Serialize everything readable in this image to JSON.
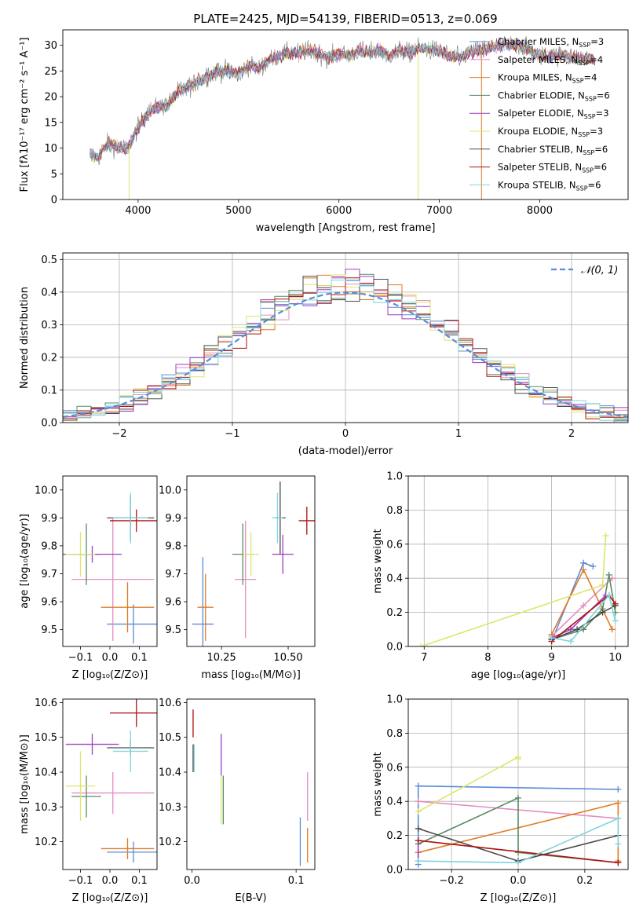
{
  "chart_data": [
    {
      "type": "line",
      "title": "PLATE=2425, MJD=54139, FIBERID=0513, z=0.069",
      "xlabel": "wavelength [Angstrom, rest frame]",
      "ylabel": "Flux [fλ10⁻¹⁷ erg cm⁻² s⁻¹ A⁻¹]",
      "xlim": [
        3250,
        8880
      ],
      "ylim": [
        0,
        33
      ],
      "xticks": [
        4000,
        5000,
        6000,
        7000,
        8000
      ],
      "yticks": [
        0,
        5,
        10,
        15,
        20,
        25,
        30
      ],
      "grid": false,
      "legend_position": "right",
      "legend": [
        {
          "name": "Chabrier MILES, N",
          "sub": "SSP",
          "tail": "=3",
          "color": "#5b8bd9"
        },
        {
          "name": "Salpeter MILES, N",
          "sub": "SSP",
          "tail": "=4",
          "color": "#e68dbf"
        },
        {
          "name": "Kroupa MILES, N",
          "sub": "SSP",
          "tail": "=4",
          "color": "#e07b25"
        },
        {
          "name": "Chabrier ELODIE, N",
          "sub": "SSP",
          "tail": "=6",
          "color": "#5a8a63"
        },
        {
          "name": "Salpeter ELODIE, N",
          "sub": "SSP",
          "tail": "=3",
          "color": "#9b3fc0"
        },
        {
          "name": "Kroupa ELODIE, N",
          "sub": "SSP",
          "tail": "=3",
          "color": "#dde56a"
        },
        {
          "name": "Chabrier STELIB, N",
          "sub": "SSP",
          "tail": "=6",
          "color": "#4a4a4a"
        },
        {
          "name": "Salpeter STELIB, N",
          "sub": "SSP",
          "tail": "=6",
          "color": "#b01010"
        },
        {
          "name": "Kroupa STELIB, N",
          "sub": "SSP",
          "tail": "=6",
          "color": "#7fd4dd"
        }
      ],
      "continuum": [
        [
          3520,
          9
        ],
        [
          3600,
          8
        ],
        [
          3700,
          11
        ],
        [
          3800,
          10
        ],
        [
          3900,
          10
        ],
        [
          4000,
          14
        ],
        [
          4100,
          17
        ],
        [
          4200,
          18
        ],
        [
          4300,
          18.5
        ],
        [
          4400,
          21
        ],
        [
          4500,
          22
        ],
        [
          4600,
          23
        ],
        [
          4700,
          24
        ],
        [
          4800,
          25
        ],
        [
          4900,
          25
        ],
        [
          5000,
          24.5
        ],
        [
          5100,
          26
        ],
        [
          5200,
          25.5
        ],
        [
          5300,
          27
        ],
        [
          5400,
          28
        ],
        [
          5500,
          28.5
        ],
        [
          5600,
          28.5
        ],
        [
          5700,
          29
        ],
        [
          5800,
          28.5
        ],
        [
          5900,
          27.5
        ],
        [
          6000,
          28.5
        ],
        [
          6100,
          28
        ],
        [
          6200,
          29
        ],
        [
          6300,
          28.5
        ],
        [
          6400,
          29
        ],
        [
          6500,
          28
        ],
        [
          6600,
          29
        ],
        [
          6700,
          28.5
        ],
        [
          6800,
          29.5
        ],
        [
          6900,
          29
        ],
        [
          7000,
          29
        ],
        [
          7100,
          28
        ],
        [
          7200,
          27.5
        ],
        [
          7300,
          28.5
        ],
        [
          7400,
          29
        ],
        [
          7500,
          29.5
        ],
        [
          7600,
          30
        ],
        [
          7800,
          30
        ],
        [
          8000,
          28
        ],
        [
          8200,
          28
        ],
        [
          8400,
          27.5
        ],
        [
          8600,
          27
        ]
      ],
      "data_end": 8550,
      "spikes": [
        {
          "x": 3910,
          "y": 0,
          "color": "#dde56a"
        },
        {
          "x": 6790,
          "y": 0,
          "color": "#dde56a"
        },
        {
          "x": 7420,
          "y": 0,
          "color": "#e07b25"
        }
      ]
    },
    {
      "type": "histogram",
      "xlabel": "(data-model)/error",
      "ylabel": "Normed distribution",
      "xlim": [
        -2.5,
        2.5
      ],
      "ylim": [
        0,
        0.52
      ],
      "xticks": [
        -2,
        -1,
        0,
        1,
        2
      ],
      "yticks": [
        0,
        0.1,
        0.2,
        0.3,
        0.4,
        0.5
      ],
      "grid": true,
      "bins": 40,
      "reference": {
        "label": "𝒩(0, 1)",
        "color": "#5b8bd9"
      }
    },
    {
      "type": "errorbar",
      "xlabel": "Z [log₁₀(Z/Z⊙)]",
      "ylabel": "age  [log₁₀(age/yr)]",
      "xlim": [
        -0.16,
        0.16
      ],
      "ylim": [
        9.44,
        10.05
      ],
      "xticks": [
        -0.1,
        0.0,
        0.1
      ],
      "yticks": [
        9.5,
        9.6,
        9.7,
        9.8,
        9.9,
        10.0
      ],
      "points": [
        {
          "x": 0.08,
          "y": 9.52,
          "xerr": 0.09,
          "yerr": 0.07,
          "color": "#5b8bd9"
        },
        {
          "x": 0.01,
          "y": 9.68,
          "xerr": 0.14,
          "yerr": 0.22,
          "color": "#e68dbf"
        },
        {
          "x": 0.06,
          "y": 9.58,
          "xerr": 0.09,
          "yerr": 0.09,
          "color": "#e07b25"
        },
        {
          "x": -0.08,
          "y": 9.77,
          "xerr": 0.05,
          "yerr": 0.11,
          "color": "#5a8a63"
        },
        {
          "x": -0.06,
          "y": 9.77,
          "xerr": 0.1,
          "yerr": 0.03,
          "color": "#9b3fc0"
        },
        {
          "x": -0.1,
          "y": 9.77,
          "xerr": 0.05,
          "yerr": 0.08,
          "color": "#dde56a"
        },
        {
          "x": 0.07,
          "y": 9.9,
          "xerr": 0.08,
          "yerr": 0.08,
          "color": "#4a4a4a"
        },
        {
          "x": 0.09,
          "y": 9.89,
          "xerr": 0.09,
          "yerr": 0.04,
          "color": "#b01010"
        },
        {
          "x": 0.07,
          "y": 9.9,
          "xerr": 0.06,
          "yerr": 0.09,
          "color": "#7fd4dd"
        }
      ]
    },
    {
      "type": "errorbar",
      "xlabel": "mass [log₁₀(M/M⊙)]",
      "xlim": [
        10.12,
        10.6
      ],
      "ylim": [
        9.44,
        10.05
      ],
      "xticks": [
        10.25,
        10.5
      ],
      "yticks": [
        9.5,
        9.6,
        9.7,
        9.8,
        9.9,
        10.0
      ],
      "points": [
        {
          "x": 10.18,
          "y": 9.52,
          "xerr": 0.04,
          "yerr": 0.24,
          "color": "#5b8bd9"
        },
        {
          "x": 10.34,
          "y": 9.68,
          "xerr": 0.04,
          "yerr": 0.21,
          "color": "#e68dbf"
        },
        {
          "x": 10.19,
          "y": 9.58,
          "xerr": 0.03,
          "yerr": 0.12,
          "color": "#e07b25"
        },
        {
          "x": 10.33,
          "y": 9.77,
          "xerr": 0.04,
          "yerr": 0.11,
          "color": "#5a8a63"
        },
        {
          "x": 10.48,
          "y": 9.77,
          "xerr": 0.04,
          "yerr": 0.07,
          "color": "#9b3fc0"
        },
        {
          "x": 10.36,
          "y": 9.77,
          "xerr": 0.03,
          "yerr": 0.08,
          "color": "#dde56a"
        },
        {
          "x": 10.47,
          "y": 9.9,
          "xerr": 0.02,
          "yerr": 0.13,
          "color": "#4a4a4a"
        },
        {
          "x": 10.57,
          "y": 9.89,
          "xerr": 0.03,
          "yerr": 0.05,
          "color": "#b01010"
        },
        {
          "x": 10.46,
          "y": 9.9,
          "xerr": 0.02,
          "yerr": 0.09,
          "color": "#7fd4dd"
        }
      ]
    },
    {
      "type": "line",
      "xlabel": "age  [log₁₀(age/yr)]",
      "ylabel": "mass weight",
      "xlim": [
        6.75,
        10.2
      ],
      "ylim": [
        0,
        1.0
      ],
      "xticks": [
        7,
        8,
        9,
        10
      ],
      "yticks": [
        0.0,
        0.2,
        0.4,
        0.6,
        0.8,
        1.0
      ],
      "grid": true,
      "series": [
        {
          "color": "#5b8bd9",
          "points": [
            [
              9.0,
              0.03
            ],
            [
              9.5,
              0.49
            ],
            [
              9.65,
              0.47
            ]
          ]
        },
        {
          "color": "#e68dbf",
          "points": [
            [
              9.0,
              0.06
            ],
            [
              9.5,
              0.24
            ],
            [
              9.95,
              0.4
            ]
          ]
        },
        {
          "color": "#e07b25",
          "points": [
            [
              9.0,
              0.07
            ],
            [
              9.5,
              0.45
            ],
            [
              9.95,
              0.1
            ]
          ]
        },
        {
          "color": "#5a8a63",
          "points": [
            [
              9.0,
              0.04
            ],
            [
              9.5,
              0.1
            ],
            [
              9.8,
              0.22
            ],
            [
              9.9,
              0.42
            ],
            [
              10.0,
              0.2
            ]
          ]
        },
        {
          "color": "#9b3fc0",
          "points": [
            [
              9.0,
              0.05
            ],
            [
              9.3,
              0.1
            ],
            [
              9.85,
              0.3
            ]
          ]
        },
        {
          "color": "#dde56a",
          "points": [
            [
              6.95,
              0.0
            ],
            [
              9.8,
              0.36
            ],
            [
              9.85,
              0.65
            ]
          ]
        },
        {
          "color": "#4a4a4a",
          "points": [
            [
              9.0,
              0.04
            ],
            [
              9.4,
              0.1
            ],
            [
              9.8,
              0.2
            ],
            [
              10.0,
              0.24
            ]
          ]
        },
        {
          "color": "#b01010",
          "points": [
            [
              9.0,
              0.03
            ],
            [
              9.9,
              0.3
            ],
            [
              10.0,
              0.25
            ]
          ]
        },
        {
          "color": "#7fd4dd",
          "points": [
            [
              9.0,
              0.05
            ],
            [
              9.3,
              0.03
            ],
            [
              9.9,
              0.3
            ],
            [
              10.0,
              0.15
            ]
          ]
        }
      ]
    },
    {
      "type": "errorbar",
      "xlabel": "Z [log₁₀(Z/Z⊙)]",
      "ylabel": "mass [log₁₀(M/M⊙)]",
      "xlim": [
        -0.16,
        0.16
      ],
      "ylim": [
        10.12,
        10.61
      ],
      "xticks": [
        -0.1,
        0.0,
        0.1
      ],
      "yticks": [
        10.2,
        10.3,
        10.4,
        10.5,
        10.6
      ],
      "points": [
        {
          "x": 0.08,
          "y": 10.17,
          "xerr": 0.09,
          "yerr": 0.03,
          "color": "#5b8bd9"
        },
        {
          "x": 0.01,
          "y": 10.34,
          "xerr": 0.14,
          "yerr": 0.06,
          "color": "#e68dbf"
        },
        {
          "x": 0.06,
          "y": 10.18,
          "xerr": 0.09,
          "yerr": 0.03,
          "color": "#e07b25"
        },
        {
          "x": -0.08,
          "y": 10.33,
          "xerr": 0.05,
          "yerr": 0.06,
          "color": "#5a8a63"
        },
        {
          "x": -0.06,
          "y": 10.48,
          "xerr": 0.09,
          "yerr": 0.03,
          "color": "#9b3fc0"
        },
        {
          "x": -0.1,
          "y": 10.36,
          "xerr": 0.05,
          "yerr": 0.1,
          "color": "#dde56a"
        },
        {
          "x": 0.07,
          "y": 10.47,
          "xerr": 0.08,
          "yerr": 0.02,
          "color": "#4a4a4a"
        },
        {
          "x": 0.09,
          "y": 10.57,
          "xerr": 0.09,
          "yerr": 0.04,
          "color": "#b01010"
        },
        {
          "x": 0.07,
          "y": 10.46,
          "xerr": 0.06,
          "yerr": 0.06,
          "color": "#7fd4dd"
        }
      ]
    },
    {
      "type": "errorbar",
      "xlabel": "E(B-V)",
      "xlim": [
        -0.005,
        0.118
      ],
      "ylim": [
        10.12,
        10.61
      ],
      "xticks": [
        0.0,
        0.1
      ],
      "yticks": [
        10.2,
        10.3,
        10.4,
        10.5,
        10.6
      ],
      "points": [
        {
          "x": 0.104,
          "y": 10.2,
          "xerr": 0,
          "yerr": 0.07,
          "color": "#5b8bd9"
        },
        {
          "x": 0.111,
          "y": 10.33,
          "xerr": 0,
          "yerr": 0.07,
          "color": "#e68dbf"
        },
        {
          "x": 0.111,
          "y": 10.19,
          "xerr": 0,
          "yerr": 0.05,
          "color": "#e07b25"
        },
        {
          "x": 0.03,
          "y": 10.32,
          "xerr": 0,
          "yerr": 0.07,
          "color": "#5a8a63"
        },
        {
          "x": 0.028,
          "y": 10.45,
          "xerr": 0,
          "yerr": 0.06,
          "color": "#9b3fc0"
        },
        {
          "x": 0.028,
          "y": 10.32,
          "xerr": 0,
          "yerr": 0.07,
          "color": "#dde56a"
        },
        {
          "x": 0.001,
          "y": 10.44,
          "xerr": 0,
          "yerr": 0.04,
          "color": "#4a4a4a"
        },
        {
          "x": 0.001,
          "y": 10.54,
          "xerr": 0,
          "yerr": 0.04,
          "color": "#b01010"
        },
        {
          "x": 0.002,
          "y": 10.44,
          "xerr": 0,
          "yerr": 0.04,
          "color": "#7fd4dd"
        }
      ]
    },
    {
      "type": "line",
      "xlabel": "Z [log₁₀(Z/Z⊙)]",
      "ylabel": "mass weight",
      "xlim": [
        -0.33,
        0.33
      ],
      "ylim": [
        0,
        1.0
      ],
      "xticks": [
        -0.2,
        0.0,
        0.2
      ],
      "yticks": [
        0.0,
        0.2,
        0.4,
        0.6,
        0.8,
        1.0
      ],
      "grid": true,
      "series": [
        {
          "color": "#5b8bd9",
          "points": [
            [
              -0.3,
              0.03
            ],
            [
              -0.3,
              0.49
            ],
            [
              0.3,
              0.47
            ]
          ]
        },
        {
          "color": "#e68dbf",
          "points": [
            [
              -0.3,
              0.4
            ],
            [
              0.3,
              0.3
            ]
          ]
        },
        {
          "color": "#e07b25",
          "points": [
            [
              -0.3,
              0.1
            ],
            [
              0.3,
              0.39
            ],
            [
              0.3,
              0.05
            ]
          ]
        },
        {
          "color": "#5a8a63",
          "points": [
            [
              -0.3,
              0.15
            ],
            [
              0.0,
              0.42
            ],
            [
              0.0,
              0.1
            ],
            [
              0.3,
              0.04
            ]
          ]
        },
        {
          "color": "#9b3fc0",
          "points": [
            [
              -0.3,
              0.05
            ],
            [
              -0.3,
              0.17
            ]
          ]
        },
        {
          "color": "#dde56a",
          "points": [
            [
              -0.3,
              0.34
            ],
            [
              0.0,
              0.66
            ],
            [
              0.0,
              0.65
            ]
          ]
        },
        {
          "color": "#4a4a4a",
          "points": [
            [
              -0.3,
              0.24
            ],
            [
              0.0,
              0.05
            ],
            [
              0.3,
              0.2
            ]
          ]
        },
        {
          "color": "#b01010",
          "points": [
            [
              -0.3,
              0.17
            ],
            [
              0.3,
              0.04
            ]
          ]
        },
        {
          "color": "#7fd4dd",
          "points": [
            [
              -0.3,
              0.05
            ],
            [
              0.0,
              0.04
            ],
            [
              0.3,
              0.3
            ],
            [
              0.3,
              0.15
            ]
          ]
        }
      ]
    }
  ]
}
